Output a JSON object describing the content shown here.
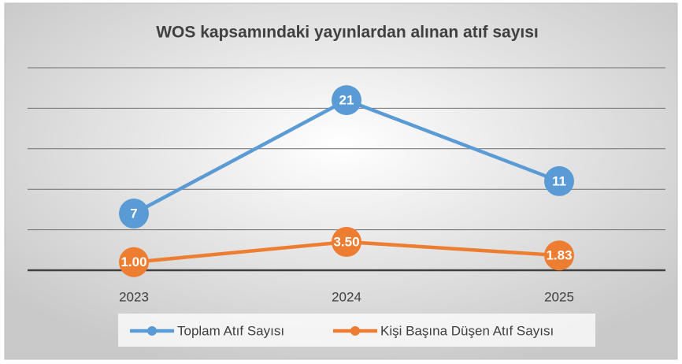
{
  "chart_data": {
    "type": "line",
    "title": "WOS kapsamındaki yayınlardan alınan atıf sayısı",
    "categories": [
      "2023",
      "2024",
      "2025"
    ],
    "series": [
      {
        "name": "Toplam Atıf Sayısı",
        "color": "#5b9bd5",
        "values": [
          7,
          21,
          11
        ]
      },
      {
        "name": "Kişi Başına Düşen Atıf Sayısı",
        "color": "#ed7d31",
        "values": [
          1,
          3.5,
          1.83
        ],
        "value_labels": [
          "1.00",
          "3.50",
          "1.83"
        ]
      }
    ],
    "ylim": [
      0,
      25
    ],
    "yticks": [
      0,
      5,
      10,
      15,
      20,
      25
    ],
    "grid": true,
    "legend": "bottom"
  }
}
